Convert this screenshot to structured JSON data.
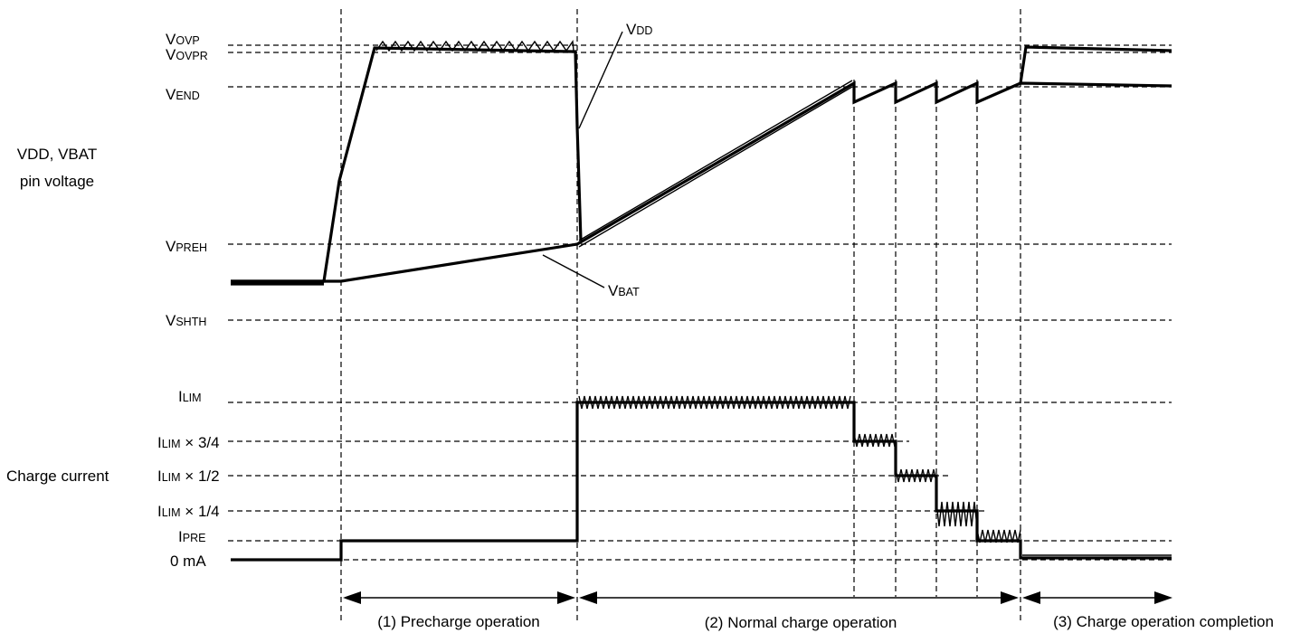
{
  "axis_labels": {
    "voltage_line1": "VDD, VBAT",
    "voltage_line2": "pin voltage",
    "current": "Charge current"
  },
  "voltage_levels": [
    {
      "id": "vovp",
      "big": "V",
      "small": "OVP"
    },
    {
      "id": "vovpr",
      "big": "V",
      "small": "OVPR"
    },
    {
      "id": "vend",
      "big": "V",
      "small": "END"
    },
    {
      "id": "vpreh",
      "big": "V",
      "small": "PREH"
    },
    {
      "id": "vshth",
      "big": "V",
      "small": "SHTH"
    }
  ],
  "current_levels": [
    {
      "id": "ilim",
      "big": "I",
      "small": "LIM",
      "suffix": ""
    },
    {
      "id": "ilim_3_4",
      "big": "I",
      "small": "LIM",
      "suffix": " × 3/4"
    },
    {
      "id": "ilim_1_2",
      "big": "I",
      "small": "LIM",
      "suffix": " × 1/2"
    },
    {
      "id": "ilim_1_4",
      "big": "I",
      "small": "LIM",
      "suffix": " × 1/4"
    },
    {
      "id": "ipre",
      "big": "I",
      "small": "PRE",
      "suffix": ""
    },
    {
      "id": "zero",
      "big": "",
      "small": "",
      "suffix": "0 mA"
    }
  ],
  "trace_labels": {
    "vdd": {
      "big": "V",
      "small": "DD"
    },
    "vbat": {
      "big": "V",
      "small": "BAT"
    }
  },
  "phases": [
    {
      "id": "precharge",
      "label": "(1) Precharge operation"
    },
    {
      "id": "normal",
      "label": "(2) Normal charge operation"
    },
    {
      "id": "complete",
      "label": "(3) Charge operation completion"
    }
  ],
  "colors": {
    "ink": "#000000",
    "background": "#ffffff"
  }
}
